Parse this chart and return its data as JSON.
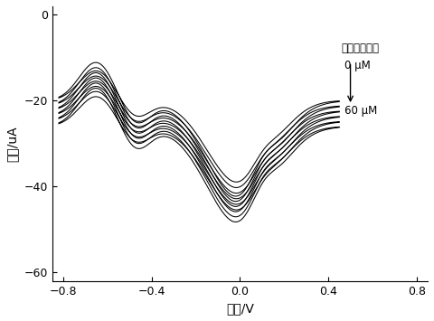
{
  "xlabel": "电压/V",
  "ylabel": "电流/uA",
  "xlim": [
    -0.85,
    0.85
  ],
  "ylim": [
    -62,
    2
  ],
  "xticks": [
    -0.8,
    -0.4,
    0.0,
    0.4,
    0.8
  ],
  "yticks": [
    0,
    -20,
    -40,
    -60
  ],
  "annotation_label": "半胱氨酸浓度",
  "annotation_0": "0 μM",
  "annotation_60": "60 μM",
  "n_curves": 6,
  "line_color": "#000000"
}
